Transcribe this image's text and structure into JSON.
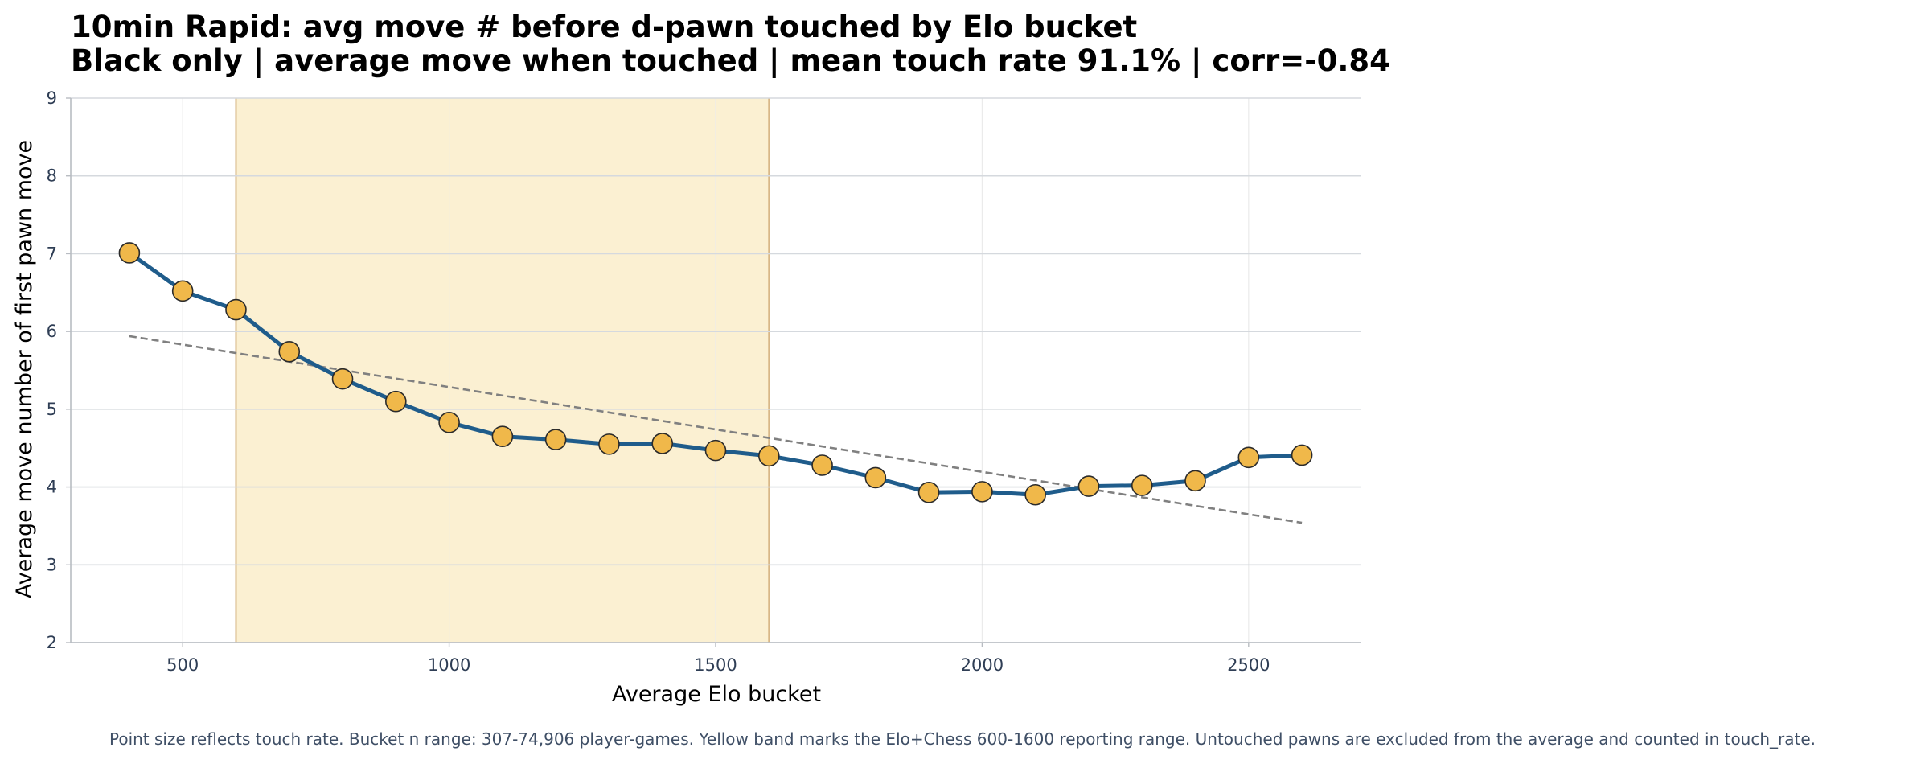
{
  "chart_data": {
    "type": "line",
    "title": "10min Rapid: avg move # before d-pawn touched by Elo bucket",
    "subtitle": "Black only | average move when touched | mean touch rate 91.1% | corr=-0.84",
    "xlabel": "Average Elo bucket",
    "ylabel": "Average move number of first pawn move",
    "xlim": [
      290,
      2710
    ],
    "ylim": [
      2,
      9
    ],
    "xticks": [
      500,
      1000,
      1500,
      2000,
      2500
    ],
    "yticks": [
      2,
      3,
      4,
      5,
      6,
      7,
      8,
      9
    ],
    "grid": true,
    "highlight_band": {
      "x_from": 600,
      "x_to": 1600,
      "color": "#fbf0d2",
      "edge_color": "#d8b787"
    },
    "series": [
      {
        "color": "#1f5c8b",
        "marker_color": "#f0b84a",
        "x": [
          400,
          500,
          600,
          700,
          800,
          900,
          1000,
          1100,
          1200,
          1300,
          1400,
          1500,
          1600,
          1700,
          1800,
          1900,
          2000,
          2100,
          2200,
          2300,
          2400,
          2500,
          2600
        ],
        "y": [
          7.01,
          6.52,
          6.28,
          5.74,
          5.39,
          5.1,
          4.83,
          4.65,
          4.61,
          4.55,
          4.56,
          4.47,
          4.4,
          4.28,
          4.12,
          3.93,
          3.94,
          3.9,
          4.01,
          4.02,
          4.08,
          4.38,
          4.41
        ]
      }
    ],
    "trendline": {
      "style": "dashed",
      "color": "#808080",
      "x": [
        400,
        2600
      ],
      "y": [
        5.94,
        3.54
      ]
    },
    "footnote": "Point size reflects touch rate. Bucket n range: 307-74,906 player-games. Yellow band marks the Elo+Chess 600-1600 reporting range. Untouched pawns are excluded from the average and counted in touch_rate."
  }
}
